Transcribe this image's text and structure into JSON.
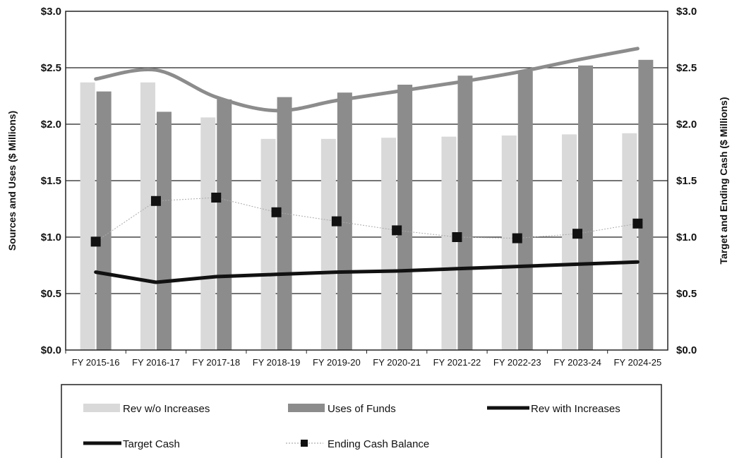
{
  "chart_data": {
    "type": "bar",
    "categories": [
      "FY 2015-16",
      "FY 2016-17",
      "FY 2017-18",
      "FY 2018-19",
      "FY 2019-20",
      "FY 2020-21",
      "FY 2021-22",
      "FY 2022-23",
      "FY 2023-24",
      "FY 2024-25"
    ],
    "series": [
      {
        "name": "Rev w/o Increases",
        "kind": "bar",
        "axis": "left",
        "color": "#d9d9d9",
        "values": [
          2.37,
          2.37,
          2.06,
          1.87,
          1.87,
          1.88,
          1.89,
          1.9,
          1.91,
          1.92
        ]
      },
      {
        "name": "Uses of Funds",
        "kind": "bar",
        "axis": "left",
        "color": "#8c8c8c",
        "values": [
          2.29,
          2.11,
          2.22,
          2.24,
          2.28,
          2.35,
          2.43,
          2.47,
          2.52,
          2.57
        ]
      },
      {
        "name": "Rev with Increases",
        "kind": "line",
        "axis": "left",
        "color": "#8c8c8c",
        "values": [
          2.4,
          2.48,
          2.24,
          2.12,
          2.21,
          2.29,
          2.37,
          2.46,
          2.57,
          2.67
        ]
      },
      {
        "name": "Target Cash",
        "kind": "line",
        "axis": "right",
        "color": "#111111",
        "values": [
          0.69,
          0.6,
          0.65,
          0.67,
          0.69,
          0.7,
          0.72,
          0.74,
          0.76,
          0.78
        ]
      },
      {
        "name": "Ending Cash Balance",
        "kind": "marker-line",
        "axis": "right",
        "color": "#111111",
        "values": [
          0.96,
          1.32,
          1.35,
          1.22,
          1.14,
          1.06,
          1.0,
          0.99,
          1.03,
          1.12
        ]
      }
    ],
    "yticks": [
      "$0.0",
      "$0.5",
      "$1.0",
      "$1.5",
      "$2.0",
      "$2.5",
      "$3.0"
    ],
    "ylim": [
      0,
      3.0
    ],
    "ylabel": "Sources and Uses ($ Millions)",
    "y2label": "Target and Ending Cash ($ Millions)",
    "y2lim": [
      0,
      3.0
    ],
    "grid": true,
    "legend": "bottom"
  },
  "legend": {
    "items": [
      {
        "label": "Rev w/o Increases"
      },
      {
        "label": "Uses of Funds"
      },
      {
        "label": "Rev with Increases"
      },
      {
        "label": "Target Cash"
      },
      {
        "label": "Ending Cash Balance"
      }
    ]
  }
}
